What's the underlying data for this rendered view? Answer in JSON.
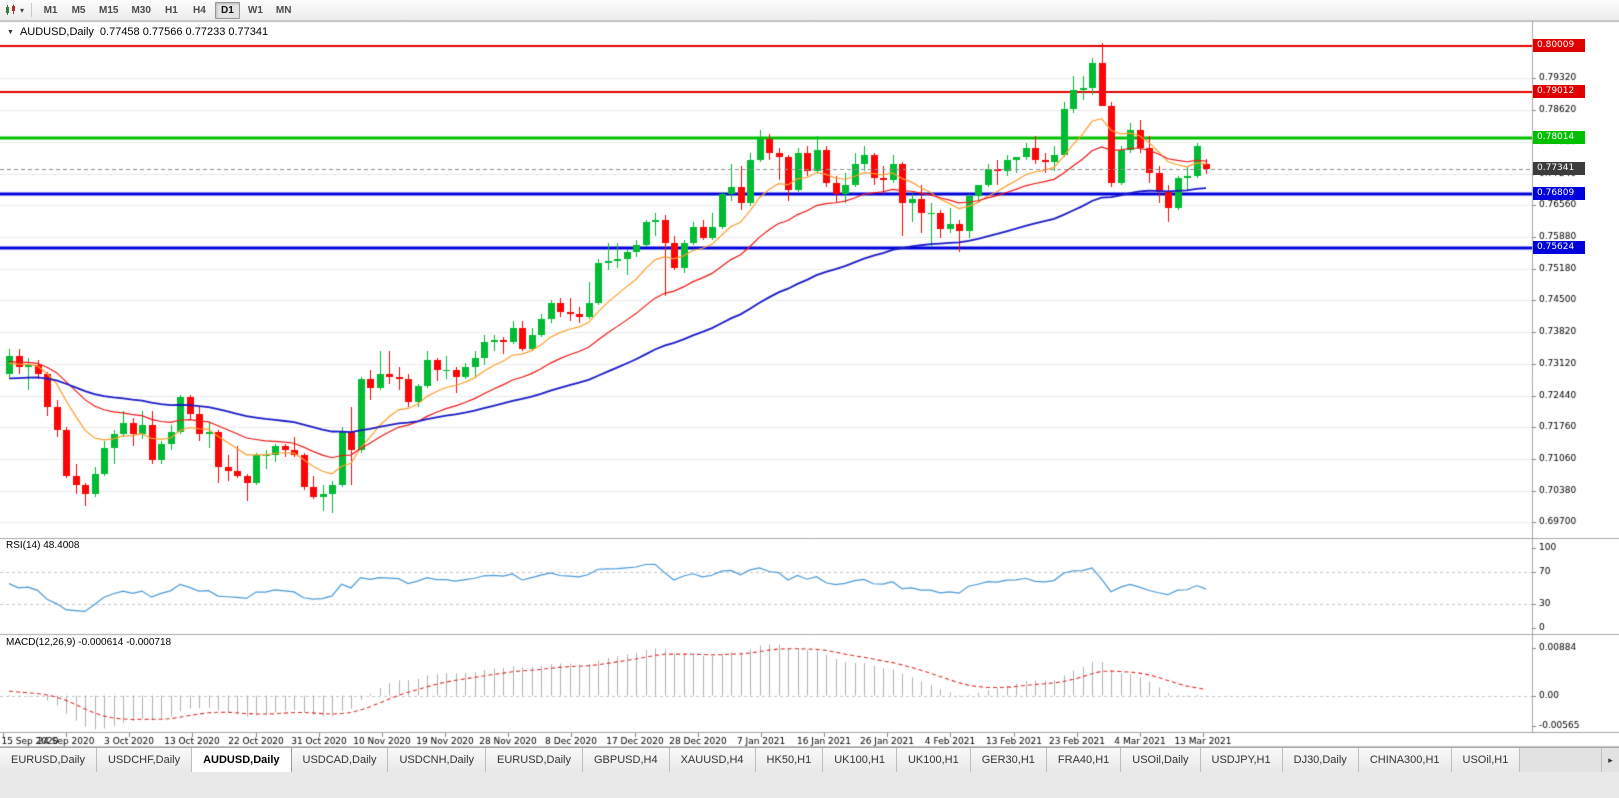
{
  "icons": {
    "dropdown": "▾",
    "collapse": "▼",
    "tab_scroll": "▸"
  },
  "toolbar": {
    "timeframes": [
      "M1",
      "M5",
      "M15",
      "M30",
      "H1",
      "H4",
      "D1",
      "W1",
      "MN"
    ],
    "active_timeframe": "D1"
  },
  "chart": {
    "title_symbol": "AUDUSD,Daily",
    "title_ohlc": "0.77458 0.77566 0.77233 0.77341",
    "price_scale_ticks": [
      "0.80020",
      "0.79320",
      "0.78620",
      "0.77920",
      "0.77240",
      "0.76560",
      "0.75880",
      "0.75180",
      "0.74500",
      "0.73820",
      "0.73120",
      "0.72440",
      "0.71760",
      "0.71060",
      "0.70380",
      "0.69700"
    ],
    "date_labels": [
      "15 Sep 2020",
      "24 Sep 2020",
      "3 Oct 2020",
      "13 Oct 2020",
      "22 Oct 2020",
      "31 Oct 2020",
      "10 Nov 2020",
      "19 Nov 2020",
      "28 Nov 2020",
      "8 Dec 2020",
      "17 Dec 2020",
      "28 Dec 2020",
      "7 Jan 2021",
      "16 Jan 2021",
      "26 Jan 2021",
      "4 Feb 2021",
      "13 Feb 2021",
      "23 Feb 2021",
      "4 Mar 2021",
      "13 Mar 2021"
    ],
    "hlines": [
      {
        "price": 0.80009,
        "label": "0.80009",
        "color": "#E00000",
        "width": 2
      },
      {
        "price": 0.79012,
        "label": "0.79012",
        "color": "#E00000",
        "width": 2
      },
      {
        "price": 0.78014,
        "label": "0.78014",
        "color": "#00C000",
        "width": 3
      },
      {
        "price": 0.76809,
        "label": "0.76809",
        "color": "#0000DC",
        "width": 3
      },
      {
        "price": 0.75624,
        "label": "0.75624",
        "color": "#0000DC",
        "width": 3
      }
    ],
    "current_price": {
      "value": 0.77341,
      "label": "0.77341",
      "color": "#3C3C3C"
    }
  },
  "indicators": {
    "rsi": {
      "label": "RSI(14) 48.4008",
      "period": 14,
      "color": "#4D9AD8",
      "ticks": [
        100,
        70,
        30,
        0
      ],
      "tick_labels": [
        "100",
        "70",
        "30",
        "0"
      ],
      "levels": [
        70,
        30
      ],
      "range": [
        0,
        100
      ]
    },
    "macd": {
      "label": "MACD(12,26,9) -0.000614 -0.000718",
      "fast": 12,
      "slow": 26,
      "signal": 9,
      "hist_color": "#B2B2B2",
      "signal_color": "#E33030",
      "ticks": [
        0.00884,
        0,
        -0.00565
      ],
      "tick_labels": [
        "0.00884",
        "0.00",
        "-0.00565"
      ],
      "range": [
        -0.00565,
        0.00884
      ]
    }
  },
  "tabs": {
    "active_index": 2,
    "items": [
      "EURUSD,Daily",
      "USDCHF,Daily",
      "AUDUSD,Daily",
      "USDCAD,Daily",
      "USDCNH,Daily",
      "EURUSD,Daily",
      "GBPUSD,H4",
      "XAUUSD,H4",
      "HK50,H1",
      "UK100,H1",
      "UK100,H1",
      "GER30,H1",
      "FRA40,H1",
      "USOil,Daily",
      "USDJPY,H1",
      "DJ30,Daily",
      "CHINA300,H1",
      "USOil,H1"
    ]
  },
  "chart_data": {
    "type": "candlestick",
    "symbol": "AUDUSD",
    "timeframe": "Daily",
    "ylim": [
      0.6942,
      0.8042
    ],
    "colors": {
      "up": "#00BB33",
      "down": "#FB0606"
    },
    "ma_lines": [
      {
        "period": 10,
        "color": "#FF9E2C",
        "width": 1.2
      },
      {
        "period": 22,
        "color": "#F01818",
        "width": 1.2
      },
      {
        "period": 55,
        "color": "#1A1AC8",
        "width": 1.8
      }
    ],
    "warmup_closes": [
      0.715,
      0.717,
      0.719,
      0.72,
      0.722,
      0.721,
      0.723,
      0.7255,
      0.727,
      0.726,
      0.728,
      0.73,
      0.7315,
      0.733,
      0.7345,
      0.7355,
      0.734,
      0.736,
      0.7375,
      0.7385,
      0.7395,
      0.7405,
      0.7414,
      0.739,
      0.737,
      0.7345,
      0.733,
      0.735,
      0.7365,
      0.734,
      0.732,
      0.731,
      0.733,
      0.731,
      0.729,
      0.7305,
      0.732,
      0.73,
      0.7285,
      0.73
    ],
    "ohlc": [
      [
        0.729,
        0.7345,
        0.7285,
        0.733
      ],
      [
        0.733,
        0.7345,
        0.729,
        0.7305
      ],
      [
        0.7305,
        0.7325,
        0.7255,
        0.731
      ],
      [
        0.731,
        0.732,
        0.728,
        0.729
      ],
      [
        0.729,
        0.7295,
        0.72,
        0.722
      ],
      [
        0.722,
        0.7235,
        0.7155,
        0.717
      ],
      [
        0.717,
        0.7175,
        0.7065,
        0.707
      ],
      [
        0.707,
        0.7095,
        0.703,
        0.705
      ],
      [
        0.705,
        0.7055,
        0.7005,
        0.703
      ],
      [
        0.703,
        0.709,
        0.7025,
        0.7075
      ],
      [
        0.7075,
        0.7145,
        0.707,
        0.713
      ],
      [
        0.713,
        0.717,
        0.7095,
        0.716
      ],
      [
        0.716,
        0.721,
        0.7155,
        0.7185
      ],
      [
        0.7185,
        0.7195,
        0.7135,
        0.716
      ],
      [
        0.716,
        0.721,
        0.715,
        0.718
      ],
      [
        0.718,
        0.721,
        0.7095,
        0.7105
      ],
      [
        0.7105,
        0.7145,
        0.7095,
        0.714
      ],
      [
        0.714,
        0.718,
        0.7125,
        0.7165
      ],
      [
        0.7165,
        0.7245,
        0.716,
        0.724
      ],
      [
        0.724,
        0.7245,
        0.719,
        0.7205
      ],
      [
        0.7205,
        0.722,
        0.7145,
        0.716
      ],
      [
        0.716,
        0.7185,
        0.713,
        0.7165
      ],
      [
        0.7165,
        0.717,
        0.7055,
        0.709
      ],
      [
        0.709,
        0.7115,
        0.706,
        0.708
      ],
      [
        0.708,
        0.7135,
        0.7065,
        0.707
      ],
      [
        0.707,
        0.7075,
        0.7015,
        0.7055
      ],
      [
        0.7055,
        0.712,
        0.705,
        0.7115
      ],
      [
        0.7115,
        0.7125,
        0.7085,
        0.7115
      ],
      [
        0.7115,
        0.714,
        0.71,
        0.7135
      ],
      [
        0.7135,
        0.714,
        0.711,
        0.7125
      ],
      [
        0.7125,
        0.7155,
        0.711,
        0.7115
      ],
      [
        0.7115,
        0.712,
        0.704,
        0.7045
      ],
      [
        0.7045,
        0.707,
        0.702,
        0.7025
      ],
      [
        0.7025,
        0.705,
        0.6995,
        0.703
      ],
      [
        0.703,
        0.706,
        0.699,
        0.705
      ],
      [
        0.705,
        0.7175,
        0.7045,
        0.7165
      ],
      [
        0.7165,
        0.722,
        0.705,
        0.7125
      ],
      [
        0.7125,
        0.7285,
        0.712,
        0.728
      ],
      [
        0.728,
        0.73,
        0.7235,
        0.726
      ],
      [
        0.726,
        0.734,
        0.7255,
        0.729
      ],
      [
        0.729,
        0.734,
        0.727,
        0.7285
      ],
      [
        0.7285,
        0.7305,
        0.7255,
        0.728
      ],
      [
        0.728,
        0.729,
        0.722,
        0.723
      ],
      [
        0.723,
        0.727,
        0.722,
        0.7265
      ],
      [
        0.7265,
        0.734,
        0.726,
        0.732
      ],
      [
        0.732,
        0.7325,
        0.7275,
        0.73
      ],
      [
        0.73,
        0.733,
        0.728,
        0.73
      ],
      [
        0.73,
        0.7305,
        0.725,
        0.7285
      ],
      [
        0.7285,
        0.7315,
        0.728,
        0.7305
      ],
      [
        0.7305,
        0.734,
        0.7285,
        0.7325
      ],
      [
        0.7325,
        0.7375,
        0.731,
        0.736
      ],
      [
        0.736,
        0.7375,
        0.734,
        0.7365
      ],
      [
        0.7365,
        0.737,
        0.7335,
        0.736
      ],
      [
        0.736,
        0.7405,
        0.7355,
        0.739
      ],
      [
        0.739,
        0.7405,
        0.734,
        0.7345
      ],
      [
        0.7345,
        0.739,
        0.734,
        0.7375
      ],
      [
        0.7375,
        0.742,
        0.737,
        0.741
      ],
      [
        0.741,
        0.745,
        0.74,
        0.7445
      ],
      [
        0.7445,
        0.7455,
        0.7415,
        0.7425
      ],
      [
        0.7425,
        0.7455,
        0.7405,
        0.742
      ],
      [
        0.742,
        0.7435,
        0.74,
        0.7415
      ],
      [
        0.7415,
        0.749,
        0.741,
        0.7445
      ],
      [
        0.7445,
        0.754,
        0.744,
        0.753
      ],
      [
        0.753,
        0.7575,
        0.7515,
        0.7535
      ],
      [
        0.7535,
        0.7575,
        0.752,
        0.754
      ],
      [
        0.754,
        0.756,
        0.7505,
        0.7555
      ],
      [
        0.7555,
        0.758,
        0.7545,
        0.757
      ],
      [
        0.757,
        0.7625,
        0.7565,
        0.762
      ],
      [
        0.762,
        0.764,
        0.759,
        0.7625
      ],
      [
        0.7625,
        0.7635,
        0.746,
        0.7575
      ],
      [
        0.7575,
        0.759,
        0.7515,
        0.752
      ],
      [
        0.752,
        0.758,
        0.751,
        0.7575
      ],
      [
        0.7575,
        0.762,
        0.757,
        0.761
      ],
      [
        0.761,
        0.7625,
        0.758,
        0.7585
      ],
      [
        0.7585,
        0.764,
        0.758,
        0.761
      ],
      [
        0.761,
        0.7685,
        0.7605,
        0.768
      ],
      [
        0.768,
        0.7745,
        0.7665,
        0.7695
      ],
      [
        0.7695,
        0.774,
        0.7645,
        0.766
      ],
      [
        0.766,
        0.777,
        0.7655,
        0.7755
      ],
      [
        0.7755,
        0.782,
        0.775,
        0.78
      ],
      [
        0.78,
        0.781,
        0.7755,
        0.777
      ],
      [
        0.777,
        0.778,
        0.771,
        0.776
      ],
      [
        0.776,
        0.7765,
        0.7665,
        0.769
      ],
      [
        0.769,
        0.778,
        0.7685,
        0.777
      ],
      [
        0.777,
        0.7785,
        0.772,
        0.773
      ],
      [
        0.773,
        0.7805,
        0.7725,
        0.7775
      ],
      [
        0.7775,
        0.7785,
        0.7695,
        0.7705
      ],
      [
        0.7705,
        0.772,
        0.766,
        0.768
      ],
      [
        0.768,
        0.7725,
        0.766,
        0.77
      ],
      [
        0.77,
        0.777,
        0.7695,
        0.7745
      ],
      [
        0.7745,
        0.7785,
        0.773,
        0.7765
      ],
      [
        0.7765,
        0.777,
        0.77,
        0.7715
      ],
      [
        0.7715,
        0.774,
        0.768,
        0.771
      ],
      [
        0.771,
        0.7765,
        0.7705,
        0.7745
      ],
      [
        0.7745,
        0.775,
        0.759,
        0.766
      ],
      [
        0.766,
        0.768,
        0.762,
        0.767
      ],
      [
        0.767,
        0.77,
        0.7595,
        0.764
      ],
      [
        0.764,
        0.766,
        0.7565,
        0.764
      ],
      [
        0.764,
        0.7645,
        0.7585,
        0.7605
      ],
      [
        0.7605,
        0.765,
        0.7595,
        0.7615
      ],
      [
        0.7615,
        0.7625,
        0.7555,
        0.76
      ],
      [
        0.76,
        0.768,
        0.7585,
        0.7675
      ],
      [
        0.7675,
        0.77,
        0.766,
        0.77
      ],
      [
        0.77,
        0.7745,
        0.7695,
        0.7735
      ],
      [
        0.7735,
        0.7755,
        0.77,
        0.773
      ],
      [
        0.773,
        0.7765,
        0.772,
        0.7755
      ],
      [
        0.7755,
        0.776,
        0.7725,
        0.776
      ],
      [
        0.776,
        0.779,
        0.7755,
        0.778
      ],
      [
        0.778,
        0.7805,
        0.7745,
        0.7755
      ],
      [
        0.7755,
        0.777,
        0.7725,
        0.775
      ],
      [
        0.775,
        0.7785,
        0.773,
        0.7765
      ],
      [
        0.7765,
        0.788,
        0.776,
        0.7865
      ],
      [
        0.7865,
        0.7935,
        0.7855,
        0.7905
      ],
      [
        0.7905,
        0.7935,
        0.7885,
        0.791
      ],
      [
        0.791,
        0.7975,
        0.7895,
        0.7965
      ],
      [
        0.7965,
        0.8007,
        0.7945,
        0.787
      ],
      [
        0.787,
        0.788,
        0.7695,
        0.7705
      ],
      [
        0.7705,
        0.7785,
        0.77,
        0.7775
      ],
      [
        0.7775,
        0.7835,
        0.777,
        0.782
      ],
      [
        0.782,
        0.784,
        0.777,
        0.778
      ],
      [
        0.778,
        0.7805,
        0.7705,
        0.7725
      ],
      [
        0.7725,
        0.774,
        0.766,
        0.7685
      ],
      [
        0.7685,
        0.77,
        0.762,
        0.765
      ],
      [
        0.765,
        0.772,
        0.7645,
        0.7715
      ],
      [
        0.7715,
        0.774,
        0.769,
        0.772
      ],
      [
        0.772,
        0.779,
        0.7715,
        0.7785
      ],
      [
        0.7746,
        0.7757,
        0.7723,
        0.7734
      ]
    ]
  }
}
